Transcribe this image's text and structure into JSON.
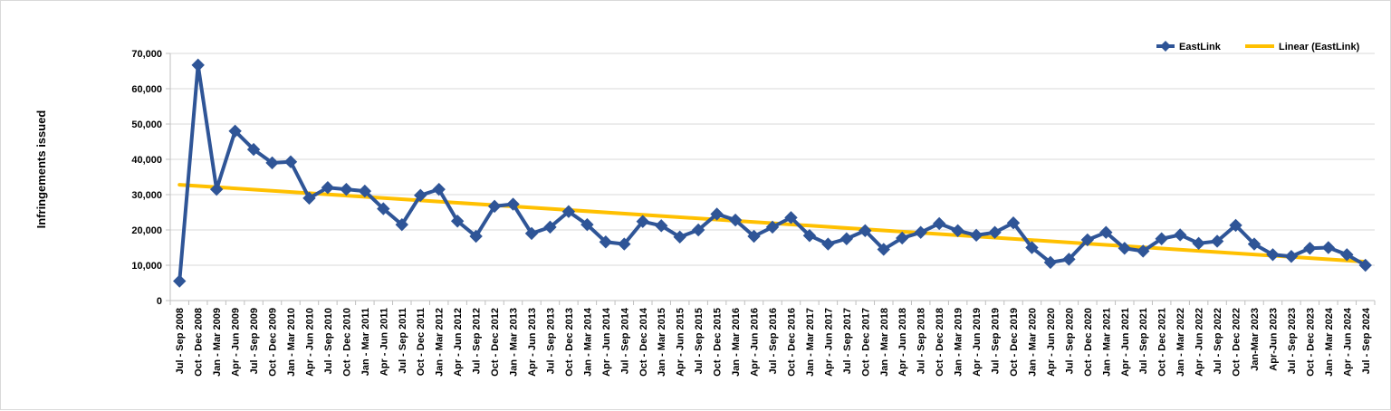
{
  "chart_data": {
    "type": "line",
    "ylabel": "Infringements issued",
    "xlabel": "",
    "ylim": [
      0,
      70000
    ],
    "y_ticks": [
      0,
      10000,
      20000,
      30000,
      40000,
      50000,
      60000,
      70000
    ],
    "y_tick_labels": [
      "0",
      "10,000",
      "20,000",
      "30,000",
      "40,000",
      "50,000",
      "60,000",
      "70,000"
    ],
    "grid": "horizontal",
    "legend_position": "top-right",
    "categories": [
      "Jul - Sep 2008",
      "Oct - Dec 2008",
      "Jan - Mar 2009",
      "Apr - Jun 2009",
      "Jul - Sep 2009",
      "Oct - Dec 2009",
      "Jan - Mar 2010",
      "Apr - Jun 2010",
      "Jul - Sep 2010",
      "Oct - Dec 2010",
      "Jan - Mar 2011",
      "Apr - Jun 2011",
      "Jul - Sep 2011",
      "Oct - Dec 2011",
      "Jan - Mar 2012",
      "Apr - Jun 2012",
      "Jul - Sep 2012",
      "Oct - Dec 2012",
      "Jan - Mar 2013",
      "Apr - Jun 2013",
      "Jul - Sep 2013",
      "Oct - Dec 2013",
      "Jan - Mar 2014",
      "Apr - Jun 2014",
      "Jul - Sep 2014",
      "Oct - Dec 2014",
      "Jan - Mar 2015",
      "Apr - Jun 2015",
      "Jul - Sep 2015",
      "Oct - Dec 2015",
      "Jan - Mar 2016",
      "Apr - Jun 2016",
      "Jul - Sep 2016",
      "Oct - Dec 2016",
      "Jan - Mar 2017",
      "Apr - Jun 2017",
      "Jul - Sep 2017",
      "Oct - Dec 2017",
      "Jan - Mar 2018",
      "Apr - Jun 2018",
      "Jul - Sep 2018",
      "Oct - Dec 2018",
      "Jan - Mar 2019",
      "Apr - Jun 2019",
      "Jul - Sep 2019",
      "Oct - Dec 2019",
      "Jan - Mar 2020",
      "Apr - Jun 2020",
      "Jul - Sep 2020",
      "Oct - Dec 2020",
      "Jan - Mar 2021",
      "Apr - Jun 2021",
      "Jul - Sep 2021",
      "Oct - Dec 2021",
      "Jan - Mar 2022",
      "Apr - Jun 2022",
      "Jul - Sep 2022",
      "Oct - Dec 2022",
      "Jan-Mar 2023",
      "Apr-Jun 2023",
      "Jul - Sep 2023",
      "Oct - Dec 2023",
      "Jan - Mar 2024",
      "Apr - Jun 2024",
      "Jul - Sep 2024"
    ],
    "series": [
      {
        "name": "EastLink",
        "color": "#2f5597",
        "marker": "diamond",
        "values": [
          5500,
          66700,
          31500,
          48000,
          42800,
          39000,
          39300,
          29000,
          32000,
          31500,
          31000,
          26000,
          21500,
          29800,
          31500,
          22500,
          18200,
          26700,
          27300,
          19000,
          20800,
          25200,
          21500,
          16600,
          16000,
          22400,
          21200,
          18000,
          20000,
          24500,
          22800,
          18200,
          20800,
          23500,
          18400,
          16000,
          17500,
          19800,
          14500,
          17700,
          19300,
          21800,
          19800,
          18500,
          19300,
          22000,
          15000,
          10800,
          11700,
          17200,
          19300,
          14800,
          14000,
          17500,
          18600,
          16200,
          16800,
          21300,
          16000,
          13000,
          12500,
          14800,
          15000,
          13000,
          10000
        ]
      },
      {
        "name": "Linear (EastLink)",
        "color": "#ffc000",
        "type": "trendline",
        "start": 32800,
        "end": 11000
      }
    ]
  }
}
